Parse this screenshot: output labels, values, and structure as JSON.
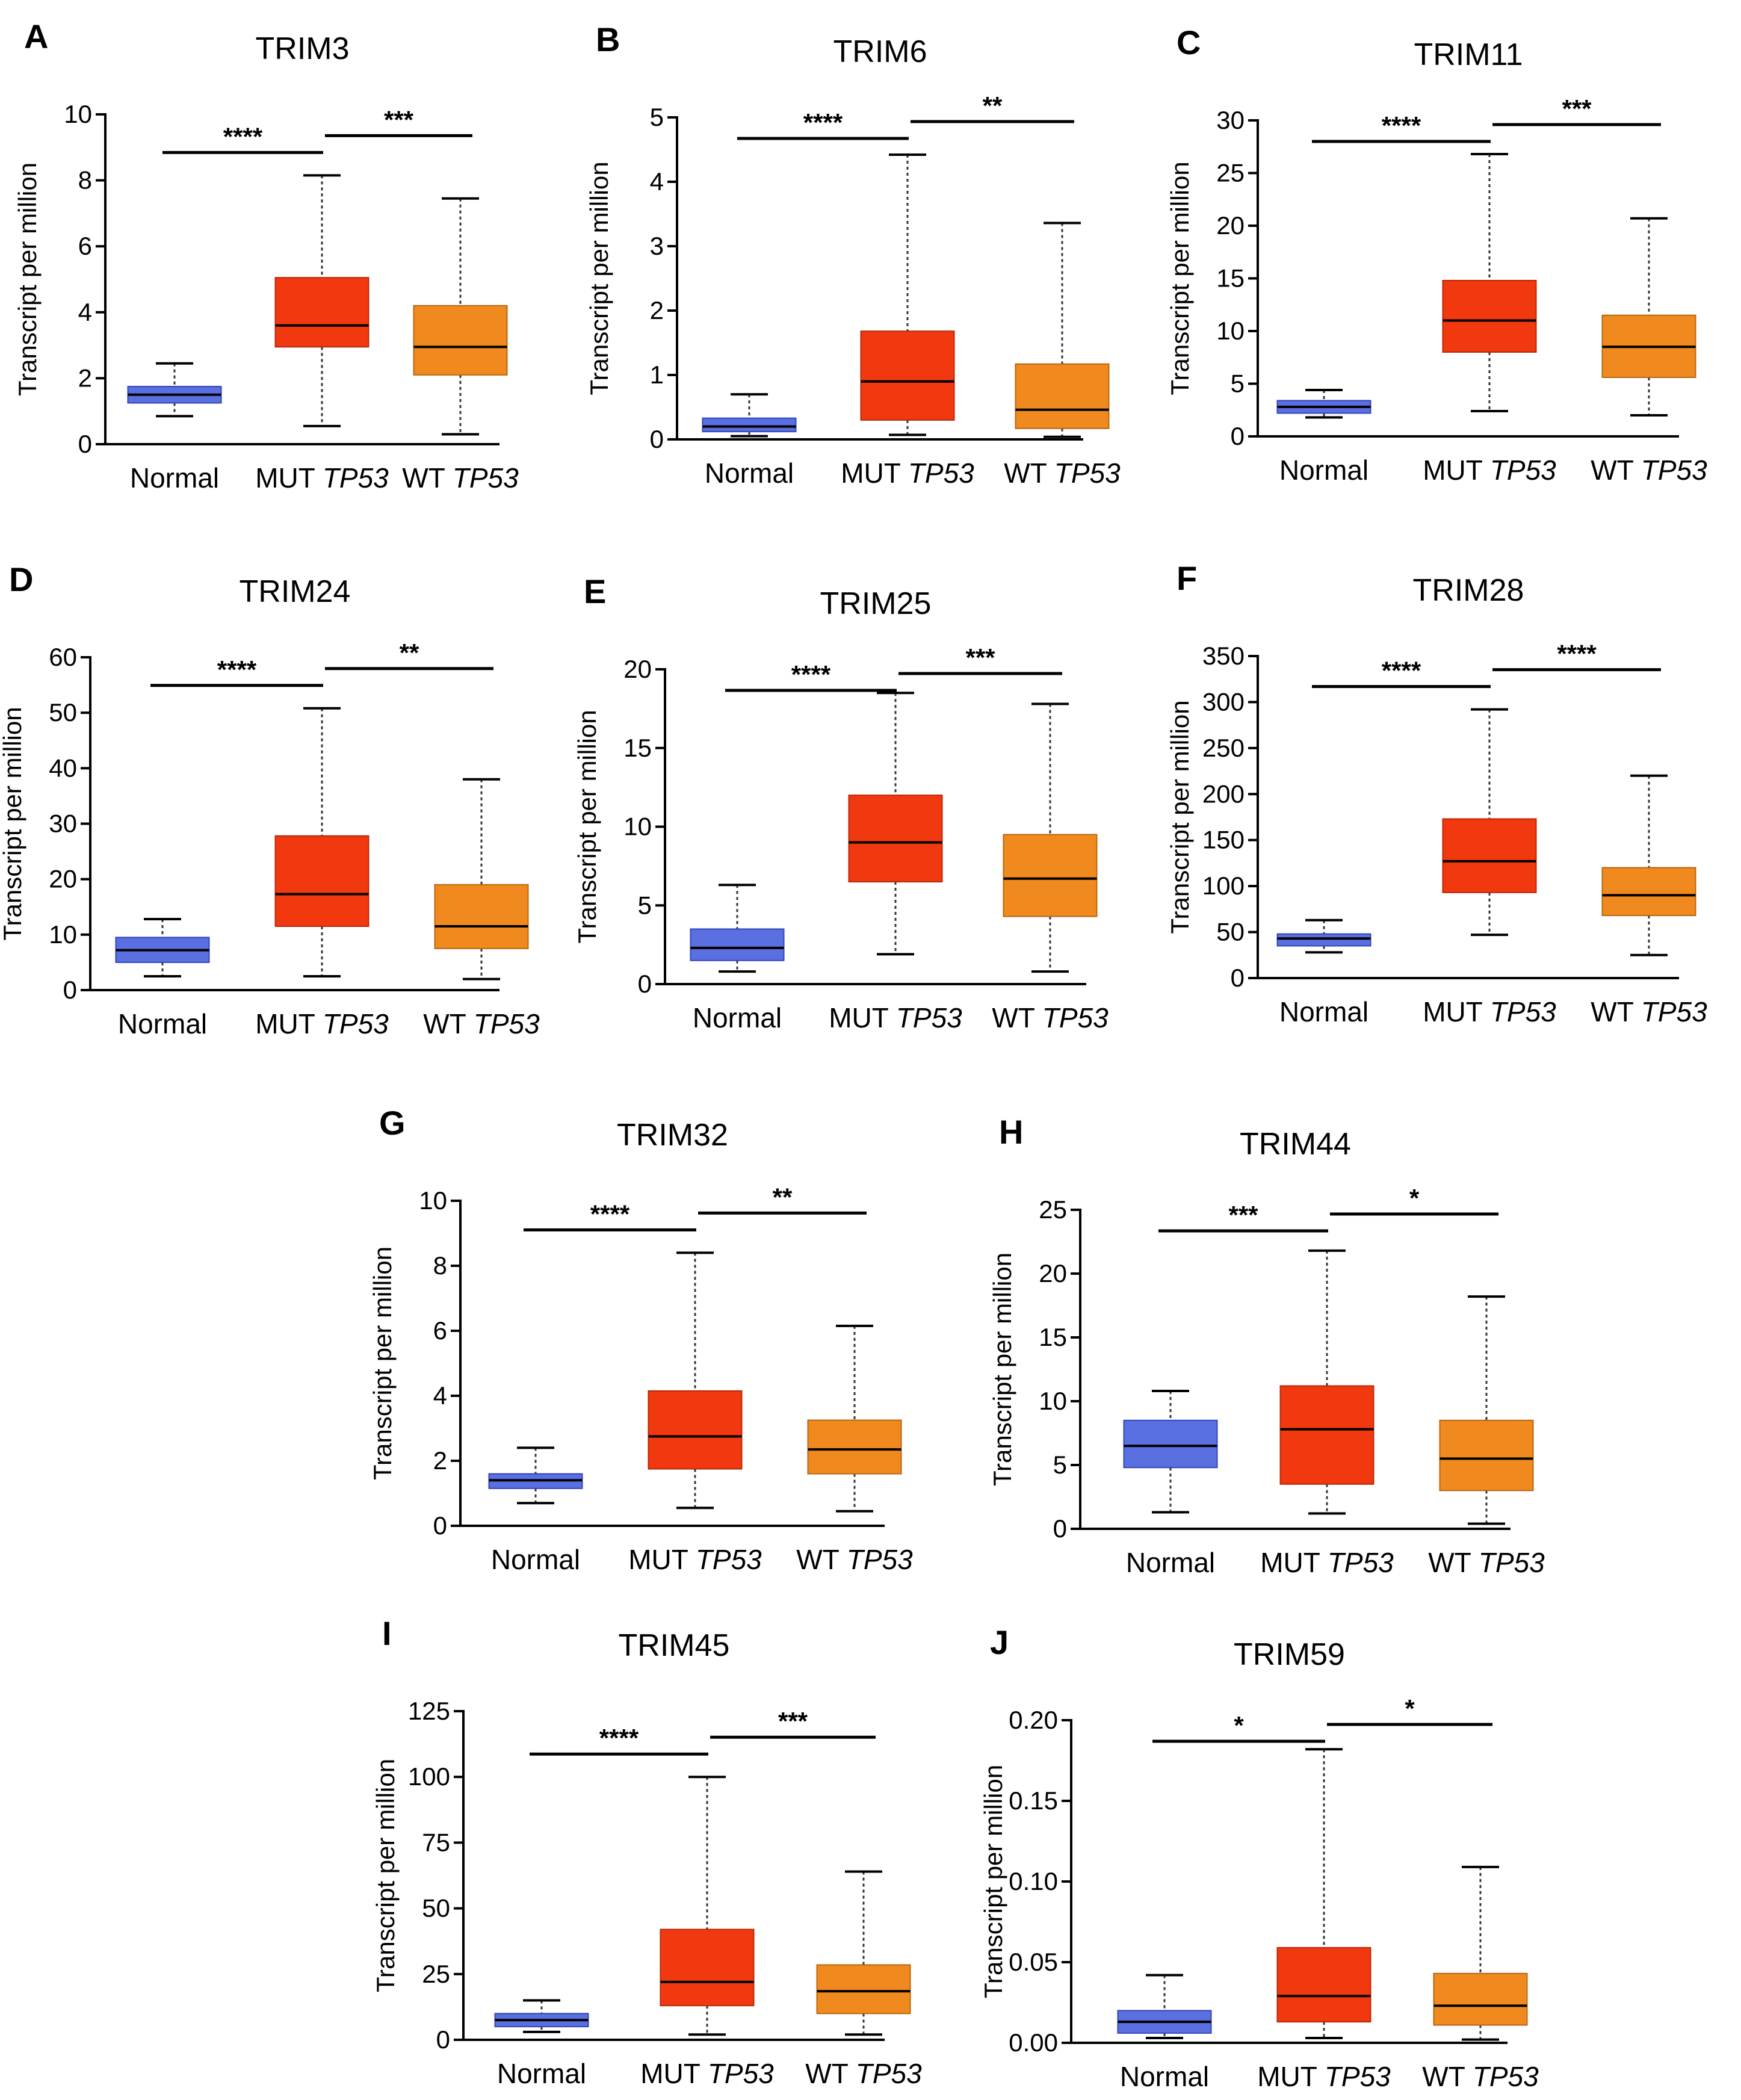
{
  "colors": {
    "normal": "#5a6fe0",
    "mut": "#f1380f",
    "wt": "#f08a1e",
    "normal_edge": "#3246b8",
    "mut_edge": "#b8280a",
    "wt_edge": "#b8660f"
  },
  "chart_data": [
    {
      "id": "A",
      "type": "box",
      "title": "TRIM3",
      "ylabel": "Transcript per million",
      "categories": [
        {
          "name": "Normal"
        },
        {
          "name": "MUT ",
          "italic": "TP53"
        },
        {
          "name": "WT ",
          "italic": "TP53"
        }
      ],
      "yticks": [
        0,
        2,
        4,
        6,
        8,
        10
      ],
      "ytick_labels": [
        "0",
        "2",
        "4",
        "6",
        "8",
        "10"
      ],
      "ylim": [
        0,
        10
      ],
      "boxes": [
        {
          "min": 0.85,
          "q1": 1.25,
          "median": 1.5,
          "q3": 1.75,
          "max": 2.45
        },
        {
          "min": 0.55,
          "q1": 2.95,
          "median": 3.6,
          "q3": 5.05,
          "max": 8.15
        },
        {
          "min": 0.3,
          "q1": 2.1,
          "median": 2.95,
          "q3": 4.2,
          "max": 7.45
        }
      ],
      "significance": [
        {
          "from": 0,
          "to": 1,
          "label": "****"
        },
        {
          "from": 1,
          "to": 2,
          "label": "***"
        }
      ]
    },
    {
      "id": "B",
      "type": "box",
      "title": "TRIM6",
      "ylabel": "Transcript per million",
      "categories": [
        {
          "name": "Normal"
        },
        {
          "name": "MUT ",
          "italic": "TP53"
        },
        {
          "name": "WT ",
          "italic": "TP53"
        }
      ],
      "yticks": [
        0,
        1,
        2,
        3,
        4,
        5
      ],
      "ytick_labels": [
        "0",
        "1",
        "2",
        "3",
        "4",
        "5"
      ],
      "ylim": [
        0,
        5
      ],
      "boxes": [
        {
          "min": 0.05,
          "q1": 0.12,
          "median": 0.2,
          "q3": 0.33,
          "max": 0.7
        },
        {
          "min": 0.07,
          "q1": 0.3,
          "median": 0.9,
          "q3": 1.68,
          "max": 4.42
        },
        {
          "min": 0.04,
          "q1": 0.17,
          "median": 0.46,
          "q3": 1.17,
          "max": 3.36
        }
      ],
      "significance": [
        {
          "from": 0,
          "to": 1,
          "label": "****"
        },
        {
          "from": 1,
          "to": 2,
          "label": "**"
        }
      ]
    },
    {
      "id": "C",
      "type": "box",
      "title": "TRIM11",
      "ylabel": "Transcript per million",
      "categories": [
        {
          "name": "Normal"
        },
        {
          "name": "MUT ",
          "italic": "TP53"
        },
        {
          "name": "WT ",
          "italic": "TP53"
        }
      ],
      "yticks": [
        0,
        5,
        10,
        15,
        20,
        25,
        30
      ],
      "ytick_labels": [
        "0",
        "5",
        "10",
        "15",
        "20",
        "25",
        "30"
      ],
      "ylim": [
        0,
        30
      ],
      "boxes": [
        {
          "min": 1.8,
          "q1": 2.2,
          "median": 2.8,
          "q3": 3.4,
          "max": 4.4
        },
        {
          "min": 2.4,
          "q1": 8.0,
          "median": 11.0,
          "q3": 14.8,
          "max": 26.8
        },
        {
          "min": 2.0,
          "q1": 5.6,
          "median": 8.5,
          "q3": 11.5,
          "max": 20.7
        }
      ],
      "significance": [
        {
          "from": 0,
          "to": 1,
          "label": "****"
        },
        {
          "from": 1,
          "to": 2,
          "label": "***"
        }
      ]
    },
    {
      "id": "D",
      "type": "box",
      "title": "TRIM24",
      "ylabel": "Transcript per million",
      "categories": [
        {
          "name": "Normal"
        },
        {
          "name": "MUT ",
          "italic": "TP53"
        },
        {
          "name": "WT ",
          "italic": "TP53"
        }
      ],
      "yticks": [
        0,
        10,
        20,
        30,
        40,
        50,
        60
      ],
      "ytick_labels": [
        "0",
        "10",
        "20",
        "30",
        "40",
        "50",
        "60"
      ],
      "ylim": [
        0,
        60
      ],
      "boxes": [
        {
          "min": 2.5,
          "q1": 5.0,
          "median": 7.2,
          "q3": 9.5,
          "max": 12.8
        },
        {
          "min": 2.5,
          "q1": 11.5,
          "median": 17.3,
          "q3": 27.8,
          "max": 50.8
        },
        {
          "min": 2.0,
          "q1": 7.5,
          "median": 11.5,
          "q3": 19.0,
          "max": 38.0
        }
      ],
      "significance": [
        {
          "from": 0,
          "to": 1,
          "label": "****"
        },
        {
          "from": 1,
          "to": 2,
          "label": "**"
        }
      ]
    },
    {
      "id": "E",
      "type": "box",
      "title": "TRIM25",
      "ylabel": "Transcript per million",
      "categories": [
        {
          "name": "Normal"
        },
        {
          "name": "MUT ",
          "italic": "TP53"
        },
        {
          "name": "WT ",
          "italic": "TP53"
        }
      ],
      "yticks": [
        0,
        5,
        10,
        15,
        20
      ],
      "ytick_labels": [
        "0",
        "5",
        "10",
        "15",
        "20"
      ],
      "ylim": [
        0,
        20
      ],
      "boxes": [
        {
          "min": 0.8,
          "q1": 1.5,
          "median": 2.3,
          "q3": 3.5,
          "max": 6.3
        },
        {
          "min": 1.9,
          "q1": 6.5,
          "median": 9.0,
          "q3": 12.0,
          "max": 18.5
        },
        {
          "min": 0.8,
          "q1": 4.3,
          "median": 6.7,
          "q3": 9.5,
          "max": 17.8
        }
      ],
      "significance": [
        {
          "from": 0,
          "to": 1,
          "label": "****"
        },
        {
          "from": 1,
          "to": 2,
          "label": "***"
        }
      ]
    },
    {
      "id": "F",
      "type": "box",
      "title": "TRIM28",
      "ylabel": "Transcript per million",
      "categories": [
        {
          "name": "Normal"
        },
        {
          "name": "MUT ",
          "italic": "TP53"
        },
        {
          "name": "WT ",
          "italic": "TP53"
        }
      ],
      "yticks": [
        0,
        50,
        100,
        150,
        200,
        250,
        300,
        350
      ],
      "ytick_labels": [
        "0",
        "50",
        "100",
        "150",
        "200",
        "250",
        "300",
        "350"
      ],
      "ylim": [
        0,
        350
      ],
      "boxes": [
        {
          "min": 28,
          "q1": 35,
          "median": 43,
          "q3": 48,
          "max": 63
        },
        {
          "min": 47,
          "q1": 93,
          "median": 127,
          "q3": 173,
          "max": 292
        },
        {
          "min": 25,
          "q1": 68,
          "median": 90,
          "q3": 120,
          "max": 220
        }
      ],
      "significance": [
        {
          "from": 0,
          "to": 1,
          "label": "****"
        },
        {
          "from": 1,
          "to": 2,
          "label": "****"
        }
      ]
    },
    {
      "id": "G",
      "type": "box",
      "title": "TRIM32",
      "ylabel": "Transcript per million",
      "categories": [
        {
          "name": "Normal"
        },
        {
          "name": "MUT ",
          "italic": "TP53"
        },
        {
          "name": "WT ",
          "italic": "TP53"
        }
      ],
      "yticks": [
        0,
        2,
        4,
        6,
        8,
        10
      ],
      "ytick_labels": [
        "0",
        "2",
        "4",
        "6",
        "8",
        "10"
      ],
      "ylim": [
        0,
        10
      ],
      "boxes": [
        {
          "min": 0.7,
          "q1": 1.15,
          "median": 1.4,
          "q3": 1.6,
          "max": 2.4
        },
        {
          "min": 0.55,
          "q1": 1.75,
          "median": 2.75,
          "q3": 4.15,
          "max": 8.4
        },
        {
          "min": 0.45,
          "q1": 1.6,
          "median": 2.35,
          "q3": 3.25,
          "max": 6.15
        }
      ],
      "significance": [
        {
          "from": 0,
          "to": 1,
          "label": "****"
        },
        {
          "from": 1,
          "to": 2,
          "label": "**"
        }
      ]
    },
    {
      "id": "H",
      "type": "box",
      "title": "TRIM44",
      "ylabel": "Transcript per million",
      "categories": [
        {
          "name": "Normal"
        },
        {
          "name": "MUT ",
          "italic": "TP53"
        },
        {
          "name": "WT ",
          "italic": "TP53"
        }
      ],
      "yticks": [
        0,
        5,
        10,
        15,
        20,
        25
      ],
      "ytick_labels": [
        "0",
        "5",
        "10",
        "15",
        "20",
        "25"
      ],
      "ylim": [
        0,
        25
      ],
      "boxes": [
        {
          "min": 1.3,
          "q1": 4.8,
          "median": 6.5,
          "q3": 8.5,
          "max": 10.8
        },
        {
          "min": 1.2,
          "q1": 3.5,
          "median": 7.8,
          "q3": 11.2,
          "max": 21.8
        },
        {
          "min": 0.4,
          "q1": 3.0,
          "median": 5.5,
          "q3": 8.5,
          "max": 18.2
        }
      ],
      "significance": [
        {
          "from": 0,
          "to": 1,
          "label": "***"
        },
        {
          "from": 1,
          "to": 2,
          "label": "*"
        }
      ]
    },
    {
      "id": "I",
      "type": "box",
      "title": "TRIM45",
      "ylabel": "Transcript per million",
      "categories": [
        {
          "name": "Normal"
        },
        {
          "name": "MUT ",
          "italic": "TP53"
        },
        {
          "name": "WT ",
          "italic": "TP53"
        }
      ],
      "yticks": [
        0,
        25,
        50,
        75,
        100,
        125
      ],
      "ytick_labels": [
        "0",
        "25",
        "50",
        "75",
        "100",
        "125"
      ],
      "ylim": [
        0,
        125
      ],
      "boxes": [
        {
          "min": 3,
          "q1": 5,
          "median": 7.5,
          "q3": 10,
          "max": 15
        },
        {
          "min": 2,
          "q1": 13,
          "median": 22,
          "q3": 42,
          "max": 100
        },
        {
          "min": 2,
          "q1": 10,
          "median": 18.5,
          "q3": 28.5,
          "max": 64
        }
      ],
      "significance": [
        {
          "from": 0,
          "to": 1,
          "label": "****"
        },
        {
          "from": 1,
          "to": 2,
          "label": "***"
        }
      ]
    },
    {
      "id": "J",
      "type": "box",
      "title": "TRIM59",
      "ylabel": "Transcript per million",
      "categories": [
        {
          "name": "Normal"
        },
        {
          "name": "MUT ",
          "italic": "TP53"
        },
        {
          "name": "WT ",
          "italic": "TP53"
        }
      ],
      "yticks": [
        0,
        0.05,
        0.1,
        0.15,
        0.2
      ],
      "ytick_labels": [
        "0.00",
        "0.05",
        "0.10",
        "0.15",
        "0.20"
      ],
      "ylim": [
        0,
        0.2
      ],
      "boxes": [
        {
          "min": 0.003,
          "q1": 0.006,
          "median": 0.013,
          "q3": 0.02,
          "max": 0.042
        },
        {
          "min": 0.003,
          "q1": 0.013,
          "median": 0.029,
          "q3": 0.059,
          "max": 0.182
        },
        {
          "min": 0.002,
          "q1": 0.011,
          "median": 0.023,
          "q3": 0.043,
          "max": 0.109
        }
      ],
      "significance": [
        {
          "from": 0,
          "to": 1,
          "label": "*"
        },
        {
          "from": 1,
          "to": 2,
          "label": "*"
        }
      ]
    }
  ]
}
